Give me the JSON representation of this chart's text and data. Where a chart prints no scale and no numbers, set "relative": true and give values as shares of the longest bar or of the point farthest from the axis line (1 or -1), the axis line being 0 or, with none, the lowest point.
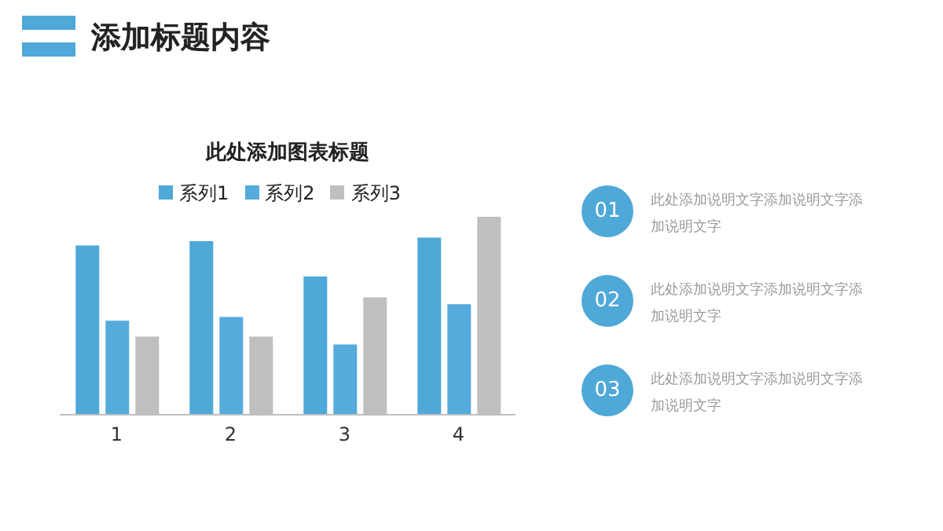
{
  "chart_data": [
    {
      "type": "bar",
      "title": "此处添加图表标题",
      "categories": [
        "1",
        "2",
        "3",
        "4"
      ],
      "relative": true,
      "legend": "top",
      "series": [
        {
          "name": "系列1",
          "color": "#4ea8d8",
          "values": [
            0.855,
            0.877,
            0.698,
            0.895
          ]
        },
        {
          "name": "系列2",
          "color": "#55acdc",
          "values": [
            0.475,
            0.494,
            0.355,
            0.559
          ]
        },
        {
          "name": "系列3",
          "color": "#bfbfbf",
          "values": [
            0.395,
            0.395,
            0.593,
            1
          ]
        }
      ]
    },
    {
      "type": "other",
      "title": "添加标题内容",
      "annotations": [
        "01",
        "此处添加说明文字添加说明文字添加说明文字",
        "02",
        "此处添加说明文字添加说明文字添加说明文字",
        "03",
        "此处添加说明文字添加说明文字添加说明文字"
      ]
    }
  ]
}
